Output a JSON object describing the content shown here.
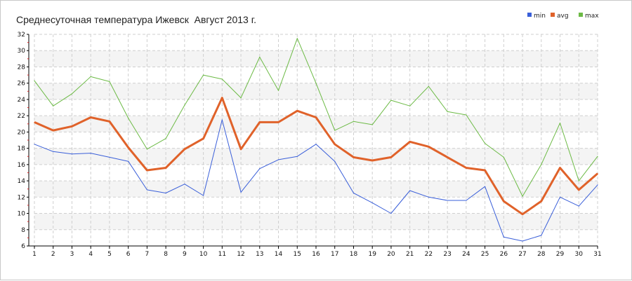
{
  "chart_data": {
    "type": "line",
    "title": "Среднесуточная температура Ижевск  Август 2013 г.",
    "xlabel": "",
    "ylabel": "",
    "categories": [
      "1",
      "2",
      "3",
      "4",
      "5",
      "6",
      "7",
      "8",
      "9",
      "10",
      "11",
      "12",
      "13",
      "14",
      "15",
      "16",
      "17",
      "18",
      "19",
      "20",
      "21",
      "22",
      "23",
      "24",
      "25",
      "26",
      "27",
      "28",
      "29",
      "30",
      "31"
    ],
    "ylim": [
      6,
      32
    ],
    "y_ticks": [
      6,
      8,
      10,
      12,
      14,
      16,
      18,
      20,
      22,
      24,
      26,
      28,
      30,
      32
    ],
    "grid": true,
    "legend_position": "top-right",
    "series": [
      {
        "name": "min",
        "color": "#3a5fd9",
        "values": [
          18.5,
          17.6,
          17.3,
          17.4,
          16.9,
          16.4,
          12.9,
          12.5,
          13.6,
          12.2,
          21.5,
          12.6,
          15.5,
          16.6,
          17.0,
          18.5,
          16.4,
          12.5,
          11.3,
          10.0,
          12.8,
          12.0,
          11.6,
          11.6,
          13.3,
          7.1,
          6.6,
          7.3,
          12.0,
          10.9,
          13.5
        ]
      },
      {
        "name": "avg",
        "color": "#e0622a",
        "values": [
          21.2,
          20.2,
          20.7,
          21.8,
          21.3,
          18.1,
          15.3,
          15.6,
          17.9,
          19.2,
          24.2,
          17.9,
          21.2,
          21.2,
          22.6,
          21.8,
          18.5,
          16.9,
          16.5,
          16.9,
          18.8,
          18.2,
          16.9,
          15.6,
          15.3,
          11.5,
          9.9,
          11.5,
          15.6,
          12.9,
          14.9
        ]
      },
      {
        "name": "max",
        "color": "#6cba45",
        "values": [
          26.3,
          23.2,
          24.7,
          26.8,
          26.2,
          21.7,
          17.9,
          19.2,
          23.3,
          27.0,
          26.5,
          24.2,
          29.2,
          25.1,
          31.5,
          26.0,
          20.2,
          21.3,
          20.9,
          23.9,
          23.2,
          25.6,
          22.5,
          22.1,
          18.6,
          16.9,
          12.1,
          16.0,
          21.1,
          14.0,
          17.0
        ]
      }
    ]
  }
}
